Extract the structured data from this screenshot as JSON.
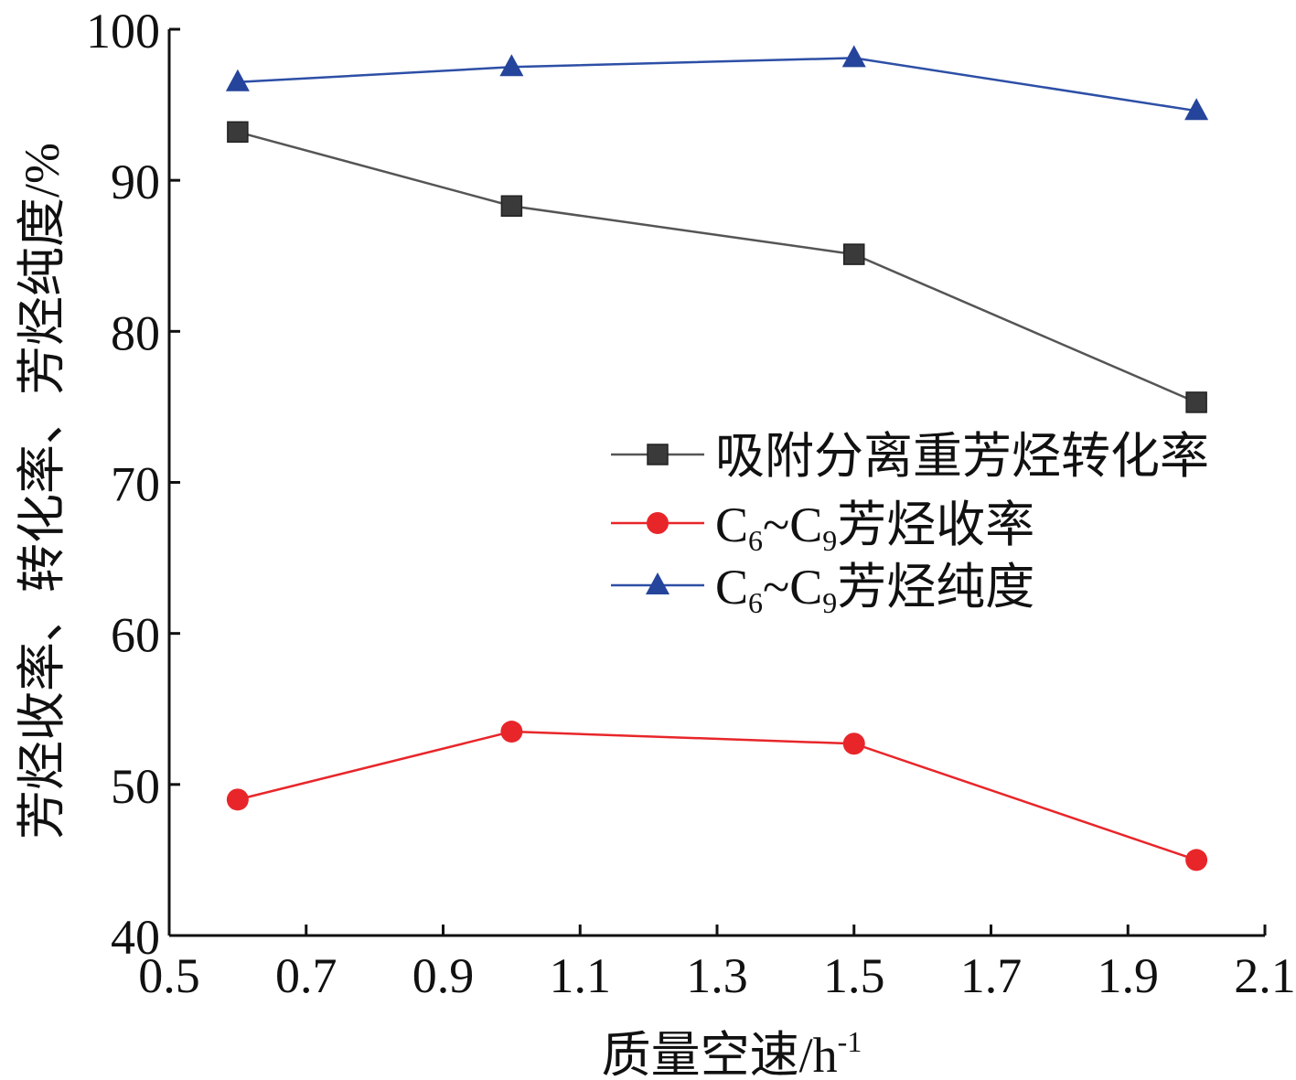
{
  "chart_data": {
    "type": "line",
    "title": "",
    "xlabel": "质量空速/h",
    "xlabel_sup": "-1",
    "ylabel": "芳烃收率、转化率、芳烃纯度/%",
    "xlim": [
      0.5,
      2.1
    ],
    "ylim": [
      40,
      100
    ],
    "xticks": [
      "0.5",
      "0.7",
      "0.9",
      "1.1",
      "1.3",
      "1.5",
      "1.7",
      "1.9",
      "2.1"
    ],
    "yticks": [
      "40",
      "50",
      "60",
      "70",
      "80",
      "90",
      "100"
    ],
    "x": [
      0.6,
      1.0,
      1.5,
      2.0
    ],
    "series": [
      {
        "name": "吸附分离重芳烃转化率",
        "legend": {
          "parts": [
            "吸附分离重芳烃转化率"
          ]
        },
        "marker": "square",
        "color": "#3a3a3a",
        "line_color": "#555555",
        "values": [
          93.2,
          88.3,
          85.1,
          75.3
        ]
      },
      {
        "name": "C6~C9芳烃收率",
        "legend": {
          "parts": [
            "C",
            "6",
            "~C",
            "9",
            "芳烃收率"
          ]
        },
        "marker": "circle",
        "color": "#e8262a",
        "line_color": "#e8262a",
        "values": [
          49.0,
          53.5,
          52.7,
          45.0
        ]
      },
      {
        "name": "C6~C9芳烃纯度",
        "legend": {
          "parts": [
            "C",
            "6",
            "~C",
            "9",
            "芳烃纯度"
          ]
        },
        "marker": "triangle",
        "color": "#25449b",
        "line_color": "#2d4fa6",
        "values": [
          96.5,
          97.5,
          98.1,
          94.6
        ]
      }
    ],
    "legend_position": "right-middle",
    "grid": false
  }
}
